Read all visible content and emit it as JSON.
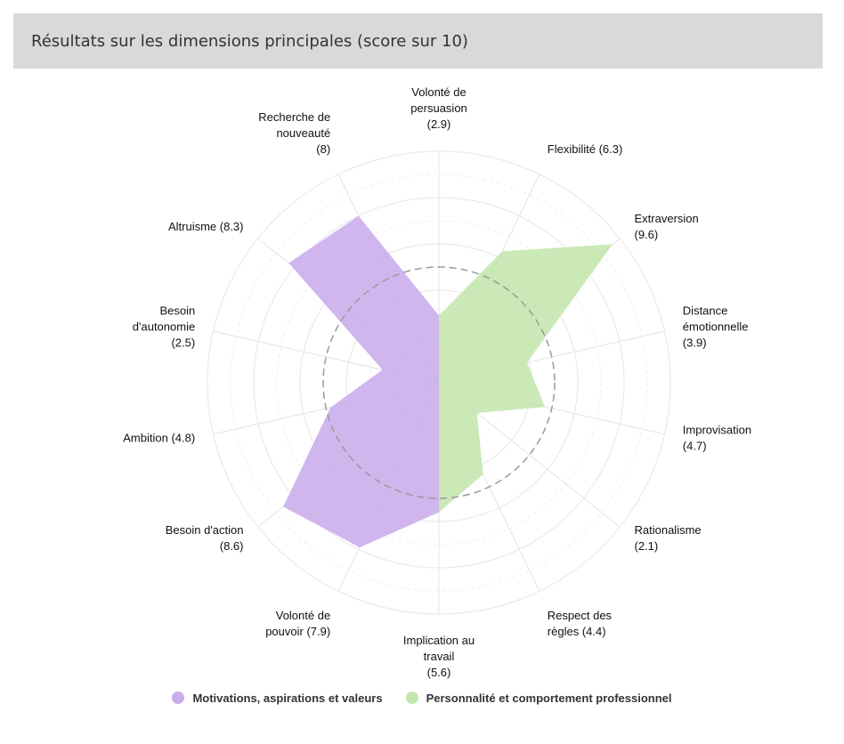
{
  "header": {
    "title": "Résultats sur les dimensions principales (score sur 10)"
  },
  "chart_data": {
    "type": "radar",
    "title": "Résultats sur les dimensions principales (score sur 10)",
    "rmax": 10,
    "gridlines": [
      1,
      2,
      3,
      4,
      5,
      6,
      7,
      8,
      9,
      10
    ],
    "reference_circle": 5,
    "categories": [
      "Volonté de persuasion",
      "Flexibilité",
      "Extraversion",
      "Distance émotionnelle",
      "Improvisation",
      "Rationalisme",
      "Respect des règles",
      "Implication au travail",
      "Volonté de pouvoir",
      "Besoin d'action",
      "Ambition",
      "Besoin d'autonomie",
      "Altruisme",
      "Recherche de nouveauté"
    ],
    "axis_labels": [
      [
        "Volonté de",
        "persuasion",
        "(2.9)"
      ],
      [
        "Flexibilité (6.3)"
      ],
      [
        "Extraversion",
        "(9.6)"
      ],
      [
        "Distance",
        "émotionnelle",
        "(3.9)"
      ],
      [
        "Improvisation",
        "(4.7)"
      ],
      [
        "Rationalisme",
        "(2.1)"
      ],
      [
        "Respect des",
        "règles (4.4)"
      ],
      [
        "Implication au",
        "travail",
        "(5.6)"
      ],
      [
        "Volonté de",
        "pouvoir (7.9)"
      ],
      [
        "Besoin d'action",
        "(8.6)"
      ],
      [
        "Ambition (4.8)"
      ],
      [
        "Besoin",
        "d'autonomie",
        "(2.5)"
      ],
      [
        "Altruisme (8.3)"
      ],
      [
        "Recherche de",
        "nouveauté",
        "(8)"
      ]
    ],
    "values": [
      2.9,
      6.3,
      9.6,
      3.9,
      4.7,
      2.1,
      4.4,
      5.6,
      7.9,
      8.6,
      4.8,
      2.5,
      8.3,
      8
    ],
    "series": [
      {
        "name": "Motivations, aspirations et valeurs",
        "color": "#c9acea",
        "axes": [
          "Implication au travail",
          "Volonté de pouvoir",
          "Besoin d'action",
          "Ambition",
          "Besoin d'autonomie",
          "Altruisme",
          "Recherche de nouveauté",
          "Volonté de persuasion"
        ]
      },
      {
        "name": "Personnalité et comportement professionnel",
        "color": "#c3e6ad",
        "axes": [
          "Volonté de persuasion",
          "Flexibilité",
          "Extraversion",
          "Distance émotionnelle",
          "Improvisation",
          "Rationalisme",
          "Respect des règles",
          "Implication au travail"
        ]
      }
    ]
  },
  "legend": {
    "items": [
      {
        "label": "Motivations, aspirations et valeurs",
        "color": "#c9acea"
      },
      {
        "label": "Personnalité et comportement professionnel",
        "color": "#c3e6ad"
      }
    ]
  }
}
